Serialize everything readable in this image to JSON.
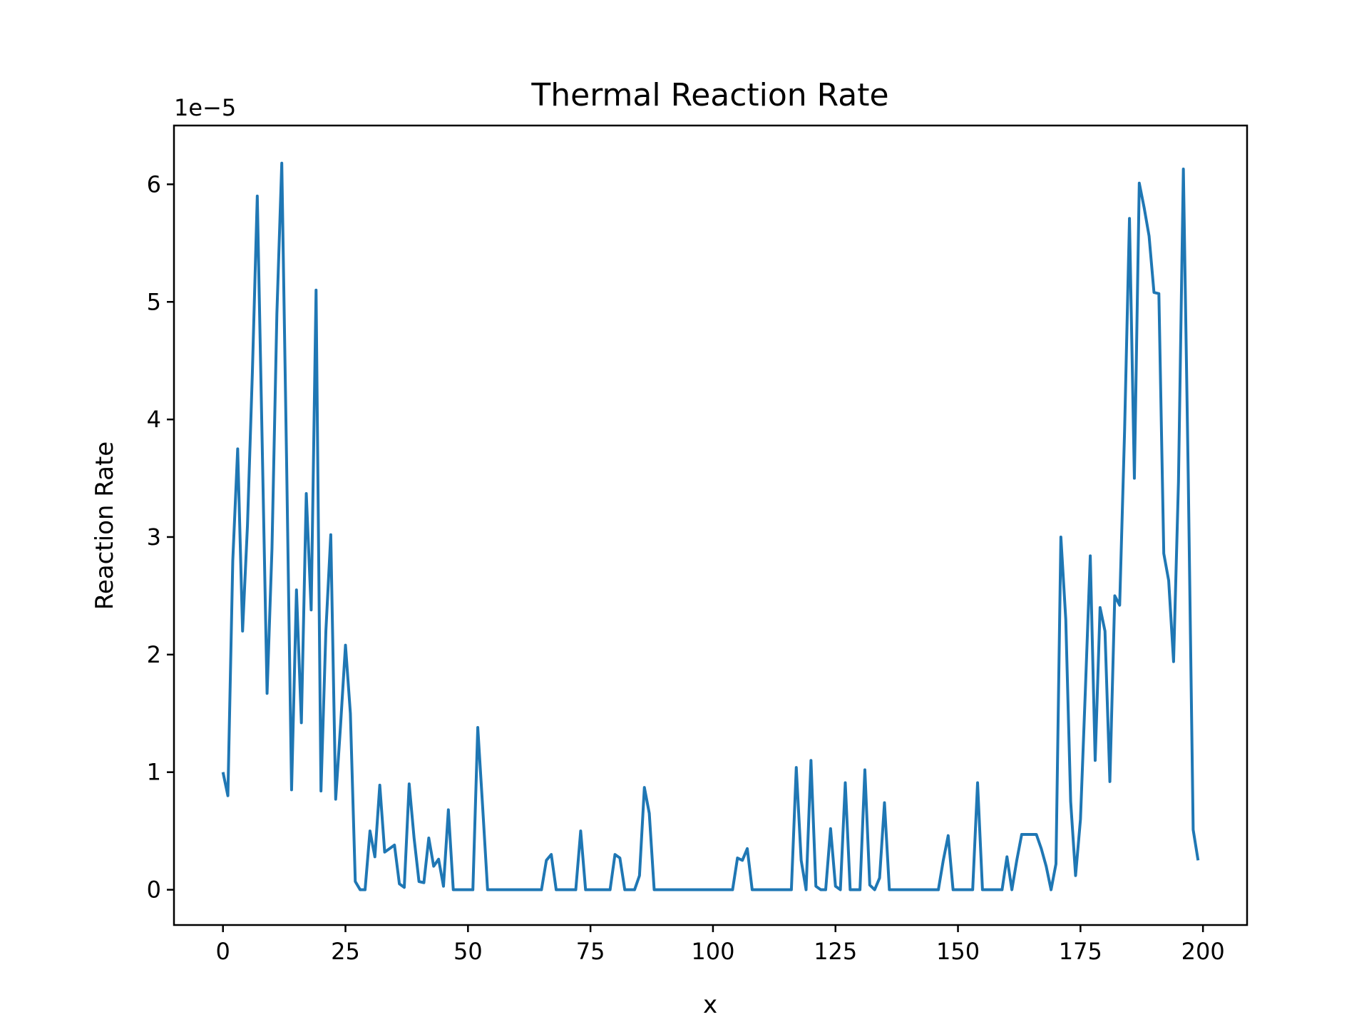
{
  "chart_data": {
    "type": "line",
    "title": "Thermal Reaction Rate",
    "xlabel": "x",
    "ylabel": "Reaction Rate",
    "offset_text": "1e−5",
    "xlim": [
      -10,
      209
    ],
    "ylim": [
      -0.3,
      6.5
    ],
    "y_scale_factor": 1e-05,
    "x_ticks": [
      0,
      25,
      50,
      75,
      100,
      125,
      150,
      175,
      200
    ],
    "x_tick_labels": [
      "0",
      "25",
      "50",
      "75",
      "100",
      "125",
      "150",
      "175",
      "200"
    ],
    "y_ticks": [
      0,
      1,
      2,
      3,
      4,
      5,
      6
    ],
    "y_tick_labels": [
      "0",
      "1",
      "2",
      "3",
      "4",
      "5",
      "6"
    ],
    "grid": false,
    "legend": "none",
    "colors": {
      "line": "#1f77b4",
      "axes": "#000000",
      "background": "#ffffff"
    },
    "series": [
      {
        "values": [
          1.0,
          0.8,
          2.8,
          3.75,
          2.2,
          3.1,
          4.4,
          5.9,
          3.8,
          1.67,
          2.9,
          4.9,
          6.18,
          3.6,
          0.85,
          2.55,
          1.42,
          3.37,
          2.38,
          5.1,
          0.84,
          2.2,
          3.02,
          0.77,
          1.4,
          2.08,
          1.5,
          0.07,
          0.0,
          0.0,
          0.5,
          0.28,
          0.89,
          0.32,
          0.35,
          0.38,
          0.05,
          0.02,
          0.9,
          0.44,
          0.07,
          0.06,
          0.44,
          0.2,
          0.26,
          0.03,
          0.68,
          0.0,
          0.0,
          0.0,
          0.0,
          0.0,
          1.38,
          0.7,
          0.0,
          0.0,
          0.0,
          0.0,
          0.0,
          0.0,
          0.0,
          0.0,
          0.0,
          0.0,
          0.0,
          0.0,
          0.25,
          0.3,
          0.0,
          0.0,
          0.0,
          0.0,
          0.0,
          0.5,
          0.0,
          0.0,
          0.0,
          0.0,
          0.0,
          0.0,
          0.3,
          0.27,
          0.0,
          0.0,
          0.0,
          0.12,
          0.87,
          0.65,
          0.0,
          0.0,
          0.0,
          0.0,
          0.0,
          0.0,
          0.0,
          0.0,
          0.0,
          0.0,
          0.0,
          0.0,
          0.0,
          0.0,
          0.0,
          0.0,
          0.0,
          0.27,
          0.25,
          0.35,
          0.0,
          0.0,
          0.0,
          0.0,
          0.0,
          0.0,
          0.0,
          0.0,
          0.0,
          1.04,
          0.25,
          0.0,
          1.1,
          0.03,
          0.0,
          0.0,
          0.52,
          0.03,
          0.0,
          0.91,
          0.0,
          0.0,
          0.0,
          1.02,
          0.04,
          0.0,
          0.1,
          0.74,
          0.0,
          0.0,
          0.0,
          0.0,
          0.0,
          0.0,
          0.0,
          0.0,
          0.0,
          0.0,
          0.0,
          0.25,
          0.46,
          0.0,
          0.0,
          0.0,
          0.0,
          0.0,
          0.91,
          0.0,
          0.0,
          0.0,
          0.0,
          0.0,
          0.28,
          0.0,
          0.25,
          0.47,
          0.47,
          0.47,
          0.47,
          0.35,
          0.2,
          0.0,
          0.22,
          3.0,
          2.3,
          0.75,
          0.12,
          0.6,
          1.7,
          2.84,
          1.1,
          2.4,
          2.2,
          0.92,
          2.5,
          2.42,
          3.9,
          5.71,
          3.5,
          6.01,
          5.8,
          5.56,
          5.08,
          5.07,
          2.86,
          2.63,
          1.94,
          3.47,
          6.13,
          3.5,
          0.51,
          0.25
        ]
      }
    ]
  }
}
